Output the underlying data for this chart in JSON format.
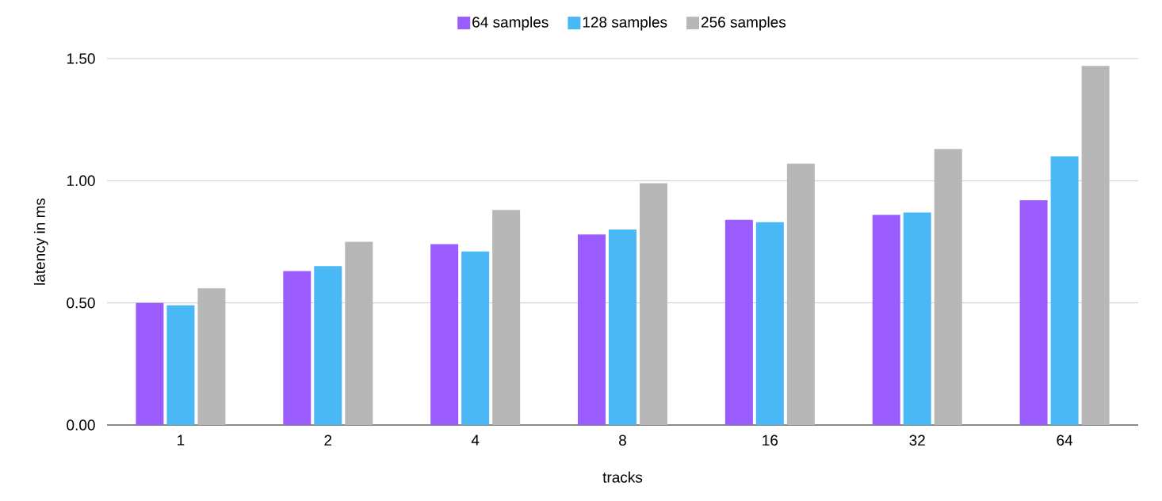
{
  "chart_data": {
    "type": "bar",
    "xlabel": "tracks",
    "ylabel": "latency in ms",
    "categories": [
      "1",
      "2",
      "4",
      "8",
      "16",
      "32",
      "64"
    ],
    "series": [
      {
        "name": "64 samples",
        "color": "#9a5cff",
        "values": [
          0.5,
          0.63,
          0.74,
          0.78,
          0.84,
          0.86,
          0.92
        ]
      },
      {
        "name": "128 samples",
        "color": "#4ab8f5",
        "values": [
          0.49,
          0.65,
          0.71,
          0.8,
          0.83,
          0.87,
          1.1
        ]
      },
      {
        "name": "256 samples",
        "color": "#b7b7b7",
        "values": [
          0.56,
          0.75,
          0.88,
          0.99,
          1.07,
          1.13,
          1.47
        ]
      }
    ],
    "ylim": [
      0,
      1.5
    ],
    "yticks": [
      {
        "value": 0,
        "label": "0.00"
      },
      {
        "value": 0.5,
        "label": "0.50"
      },
      {
        "value": 1,
        "label": "1.00"
      },
      {
        "value": 1.5,
        "label": "1.50"
      }
    ],
    "grid": "y",
    "legend": "top"
  }
}
